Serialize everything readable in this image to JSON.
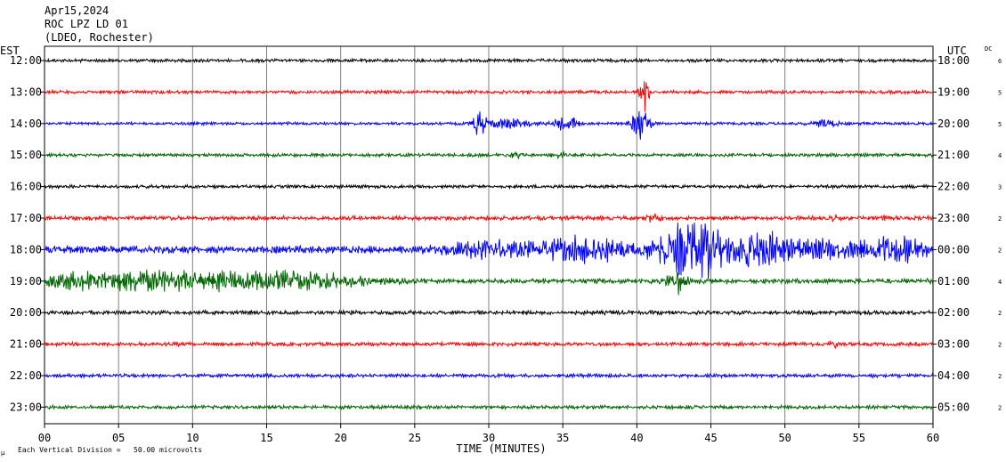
{
  "header": {
    "date": "Apr15,2024",
    "station": "ROC LPZ LD 01",
    "network": "(LDEO, Rochester)"
  },
  "left_axis_label": "EST",
  "right_axis_label": "UTC",
  "dc_label": "DC",
  "footer": {
    "scale_note": "Each Vertical Division =   50.00 microvolts",
    "logo": "μ"
  },
  "colors": {
    "black": "#000000",
    "red": "#ff0000",
    "blue": "#0000ff",
    "green": "#006400",
    "grid": "#808080"
  },
  "chart_data": {
    "type": "line",
    "xlabel": "TIME (MINUTES)",
    "xlim": [
      0,
      60
    ],
    "x_ticks": [
      "00",
      "05",
      "10",
      "15",
      "20",
      "25",
      "30",
      "35",
      "40",
      "45",
      "50",
      "55",
      "60"
    ],
    "rows": [
      {
        "est": "12:00",
        "utc": "18:00",
        "dc": "6",
        "color": "black",
        "noise": 2.0,
        "events": []
      },
      {
        "est": "13:00",
        "utc": "19:00",
        "dc": "5",
        "color": "red",
        "noise": 2.0,
        "events": [
          [
            40.5,
            0.3,
            22
          ]
        ]
      },
      {
        "est": "14:00",
        "utc": "20:00",
        "dc": "5",
        "color": "blue",
        "noise": 1.8,
        "events": [
          [
            29.3,
            0.5,
            12
          ],
          [
            31.2,
            1.5,
            5
          ],
          [
            35.0,
            0.5,
            9
          ],
          [
            35.8,
            0.3,
            7
          ],
          [
            40.3,
            0.6,
            18
          ],
          [
            52.8,
            0.8,
            4
          ]
        ]
      },
      {
        "est": "15:00",
        "utc": "21:00",
        "dc": "4",
        "color": "green",
        "noise": 2.0,
        "events": [
          [
            31.8,
            0.5,
            4
          ],
          [
            34.7,
            0.4,
            4
          ]
        ]
      },
      {
        "est": "16:00",
        "utc": "22:00",
        "dc": "3",
        "color": "black",
        "noise": 2.0,
        "events": []
      },
      {
        "est": "17:00",
        "utc": "23:00",
        "dc": "2",
        "color": "red",
        "noise": 2.5,
        "events": [
          [
            53.3,
            0.3,
            3
          ],
          [
            57.0,
            0.3,
            3
          ],
          [
            41.2,
            0.5,
            4
          ]
        ]
      },
      {
        "est": "18:00",
        "utc": "00:00",
        "dc": "2",
        "color": "blue",
        "noise": 4.5,
        "events": [
          [
            30.0,
            3.0,
            8
          ],
          [
            36.5,
            3.0,
            14
          ],
          [
            42.8,
            1.8,
            24
          ],
          [
            44.7,
            1.3,
            22
          ],
          [
            48.0,
            1.6,
            20
          ],
          [
            52.0,
            4.0,
            9
          ],
          [
            57.5,
            2.5,
            12
          ]
        ]
      },
      {
        "est": "19:00",
        "utc": "01:00",
        "dc": "4",
        "color": "green",
        "noise": 3.0,
        "events": [
          [
            4.0,
            6.0,
            9
          ],
          [
            12.0,
            6.0,
            8
          ],
          [
            18.0,
            4.0,
            6
          ],
          [
            42.7,
            0.6,
            14
          ]
        ]
      },
      {
        "est": "20:00",
        "utc": "02:00",
        "dc": "2",
        "color": "black",
        "noise": 2.5,
        "events": []
      },
      {
        "est": "21:00",
        "utc": "03:00",
        "dc": "2",
        "color": "red",
        "noise": 2.3,
        "events": [
          [
            53.3,
            0.3,
            3
          ]
        ]
      },
      {
        "est": "22:00",
        "utc": "04:00",
        "dc": "2",
        "color": "blue",
        "noise": 2.2,
        "events": []
      },
      {
        "est": "23:00",
        "utc": "05:00",
        "dc": "2",
        "color": "green",
        "noise": 2.2,
        "events": []
      }
    ]
  }
}
